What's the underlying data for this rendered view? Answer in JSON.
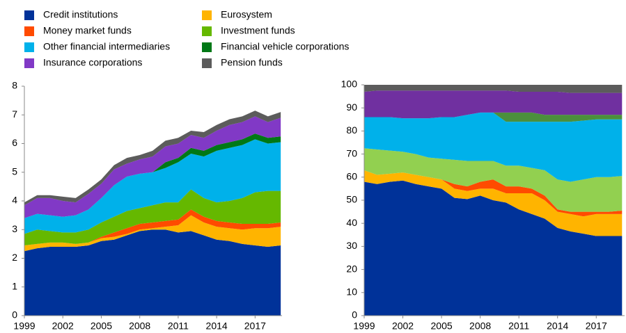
{
  "chart_data": [
    {
      "type": "stacked_area",
      "x": [
        1999,
        2000,
        2001,
        2002,
        2003,
        2004,
        2005,
        2006,
        2007,
        2008,
        2009,
        2010,
        2011,
        2012,
        2013,
        2014,
        2015,
        2016,
        2017,
        2018,
        2019
      ],
      "xlim": [
        1999,
        2019.1
      ],
      "xticks": [
        1999,
        2002,
        2005,
        2008,
        2011,
        2014,
        2017
      ],
      "ylim": [
        0,
        8
      ],
      "yticks": [
        0,
        1,
        2,
        3,
        4,
        5,
        6,
        7,
        8
      ],
      "series": [
        {
          "name": "Credit institutions",
          "color": "#003299",
          "values": [
            2.25,
            2.35,
            2.4,
            2.4,
            2.4,
            2.45,
            2.6,
            2.65,
            2.8,
            2.95,
            3.0,
            3.0,
            2.9,
            2.95,
            2.8,
            2.65,
            2.6,
            2.5,
            2.45,
            2.4,
            2.45
          ]
        },
        {
          "name": "Eurosystem",
          "color": "#ffb400",
          "values": [
            0.2,
            0.15,
            0.15,
            0.15,
            0.1,
            0.1,
            0.1,
            0.1,
            0.05,
            0.05,
            0.05,
            0.1,
            0.25,
            0.55,
            0.45,
            0.45,
            0.45,
            0.5,
            0.6,
            0.65,
            0.65
          ]
        },
        {
          "name": "Money market funds",
          "color": "#ff4b00",
          "values": [
            0,
            0,
            0,
            0,
            0,
            0,
            0.05,
            0.15,
            0.2,
            0.2,
            0.2,
            0.2,
            0.2,
            0.2,
            0.2,
            0.2,
            0.2,
            0.2,
            0.15,
            0.15,
            0.15
          ]
        },
        {
          "name": "Investment funds",
          "color": "#65b800",
          "values": [
            0.4,
            0.5,
            0.4,
            0.35,
            0.4,
            0.45,
            0.5,
            0.55,
            0.6,
            0.55,
            0.6,
            0.65,
            0.6,
            0.7,
            0.65,
            0.65,
            0.75,
            0.9,
            1.1,
            1.15,
            1.1
          ]
        },
        {
          "name": "Other financial intermediaries",
          "color": "#00b1ea",
          "values": [
            0.55,
            0.55,
            0.55,
            0.55,
            0.6,
            0.7,
            0.85,
            1.1,
            1.2,
            1.2,
            1.15,
            1.2,
            1.4,
            1.25,
            1.45,
            1.8,
            1.85,
            1.85,
            1.85,
            1.65,
            1.7
          ]
        },
        {
          "name": "Financial vehicle corporations",
          "color": "#007816",
          "values": [
            0,
            0,
            0,
            0,
            0,
            0,
            0,
            0,
            0,
            0,
            0,
            0.2,
            0.15,
            0.2,
            0.2,
            0.2,
            0.2,
            0.2,
            0.2,
            0.2,
            0.2
          ]
        },
        {
          "name": "Insurance corporations",
          "color": "#8139c6",
          "values": [
            0.45,
            0.55,
            0.6,
            0.55,
            0.45,
            0.55,
            0.5,
            0.55,
            0.45,
            0.5,
            0.55,
            0.55,
            0.5,
            0.45,
            0.45,
            0.5,
            0.6,
            0.6,
            0.6,
            0.55,
            0.65
          ]
        },
        {
          "name": "Pension funds",
          "color": "#5c5c5c",
          "values": [
            0.1,
            0.1,
            0.1,
            0.15,
            0.15,
            0.15,
            0.15,
            0.15,
            0.2,
            0.15,
            0.2,
            0.2,
            0.2,
            0.15,
            0.2,
            0.2,
            0.2,
            0.2,
            0.2,
            0.2,
            0.2
          ]
        }
      ]
    },
    {
      "type": "stacked_area",
      "x": [
        1999,
        2000,
        2001,
        2002,
        2003,
        2004,
        2005,
        2006,
        2007,
        2008,
        2009,
        2010,
        2011,
        2012,
        2013,
        2014,
        2015,
        2016,
        2017,
        2018,
        2019
      ],
      "xlim": [
        1999,
        2019.2
      ],
      "xticks": [
        1999,
        2002,
        2005,
        2008,
        2011,
        2014,
        2017
      ],
      "ylim": [
        0,
        100
      ],
      "yticks": [
        0,
        10,
        20,
        30,
        40,
        50,
        60,
        70,
        80,
        90,
        100
      ],
      "series": [
        {
          "color": "#003299",
          "values": [
            58,
            57,
            58,
            58.5,
            57,
            56,
            55,
            51,
            50.5,
            52,
            50,
            49,
            46,
            44,
            42,
            38,
            36.5,
            35.5,
            34.5,
            34.5,
            34.5
          ]
        },
        {
          "color": "#ffb400",
          "values": [
            5,
            4,
            3.5,
            3.5,
            4,
            4,
            4,
            4,
            3.5,
            3,
            5,
            4,
            7,
            9,
            8,
            7,
            7.5,
            7.5,
            9.5,
            9.5,
            9.5
          ]
        },
        {
          "color": "#ff4b00",
          "values": [
            0,
            0,
            0,
            0,
            0,
            0,
            0,
            2,
            2,
            3,
            4,
            3,
            3,
            2,
            2,
            1,
            1,
            2,
            1,
            1,
            1.5
          ]
        },
        {
          "color": "#92d050",
          "values": [
            9.5,
            11,
            10,
            9,
            9,
            8.5,
            9,
            10.5,
            11,
            9,
            8,
            9,
            9,
            9,
            11,
            13,
            13,
            14,
            15,
            15,
            15
          ]
        },
        {
          "color": "#00b1ea",
          "values": [
            13.5,
            14,
            14.5,
            14.5,
            15.5,
            17,
            18,
            18.5,
            20,
            21,
            21,
            19,
            19,
            20,
            21,
            25,
            26,
            25.5,
            25,
            25,
            24.5
          ]
        },
        {
          "color": "#4b8f3c",
          "values": [
            0,
            0,
            0,
            0,
            0,
            0,
            0,
            0,
            0,
            0,
            0,
            4,
            4,
            4,
            3,
            3,
            3,
            2.5,
            2,
            2,
            2
          ]
        },
        {
          "color": "#7030a0",
          "values": [
            11,
            11.5,
            11.5,
            12,
            12,
            12,
            11.5,
            11.5,
            10.5,
            9.5,
            9.5,
            9.5,
            9,
            9,
            10,
            10,
            9.5,
            9.5,
            9.5,
            9.5,
            9.5
          ]
        },
        {
          "color": "#5c5c5c",
          "values": [
            3,
            2.5,
            2.5,
            2.5,
            2.5,
            2.5,
            2.5,
            2.5,
            2.5,
            2.5,
            2.5,
            2.5,
            3,
            3,
            3,
            3,
            3.5,
            3.5,
            3.5,
            3.5,
            3.5
          ]
        }
      ]
    }
  ]
}
